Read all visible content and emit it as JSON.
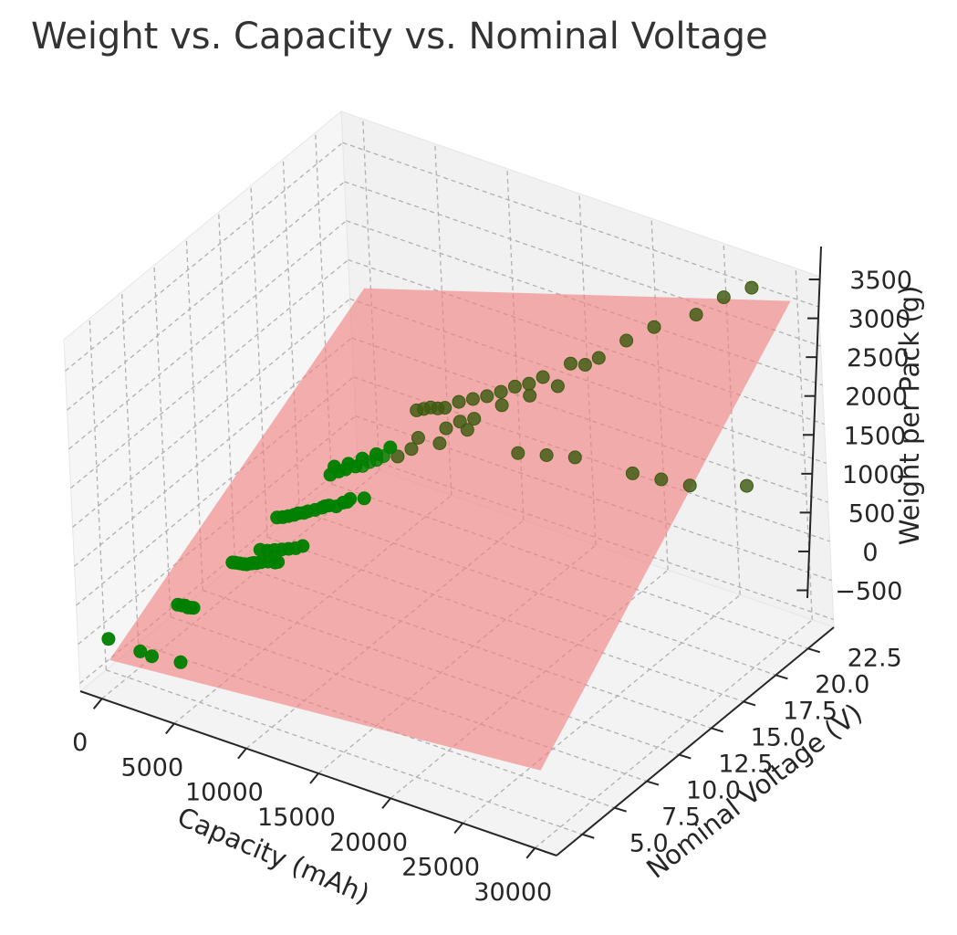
{
  "chart_data": {
    "type": "scatter",
    "title": "Weight vs. Capacity vs. Nominal Voltage",
    "xlabel": "Capacity (mAh)",
    "ylabel": "Nominal Voltage (V)",
    "zlabel": "Weight per Pack (g)",
    "xlim": [
      -1500,
      31500
    ],
    "ylim": [
      3.0,
      24.5
    ],
    "zlim": [
      -600,
      3900
    ],
    "x_ticks": [
      "0",
      "5000",
      "10000",
      "15000",
      "20000",
      "25000",
      "30000"
    ],
    "y_ticks": [
      "5.0",
      "7.5",
      "10.0",
      "12.5",
      "15.0",
      "17.5",
      "20.0",
      "22.5"
    ],
    "z_ticks": [
      "−500",
      "0",
      "500",
      "1000",
      "1500",
      "2000",
      "2500",
      "3000",
      "3500"
    ],
    "grid": true,
    "colors": {
      "points": "#008000",
      "points_dark": "#3d5a10",
      "plane": "#f08080",
      "pane_back": "#f1f1f1",
      "pane_side": "#f6f6f6",
      "pane_floor": "#f3f3f3",
      "grid": "#b0b0b0"
    },
    "series": [
      {
        "name": "",
        "kind": "scatter",
        "points": [
          [
            0,
            3.7,
            70
          ],
          [
            2200,
            3.7,
            50
          ],
          [
            2200,
            7.4,
            110
          ],
          [
            3000,
            3.7,
            40
          ],
          [
            5000,
            3.7,
            90
          ],
          [
            1500,
            7.4,
            100
          ],
          [
            1800,
            7.4,
            110
          ],
          [
            2000,
            7.4,
            120
          ],
          [
            2400,
            7.4,
            120
          ],
          [
            2600,
            7.4,
            130
          ],
          [
            2000,
            11.1,
            170
          ],
          [
            2200,
            11.1,
            180
          ],
          [
            2500,
            11.1,
            190
          ],
          [
            2800,
            11.1,
            200
          ],
          [
            3000,
            11.1,
            210
          ],
          [
            3300,
            11.1,
            240
          ],
          [
            3500,
            11.1,
            260
          ],
          [
            3700,
            11.1,
            270
          ],
          [
            4000,
            11.1,
            300
          ],
          [
            4500,
            11.1,
            340
          ],
          [
            5000,
            11.1,
            360
          ],
          [
            5200,
            11.1,
            380
          ],
          [
            4000,
            11.1,
            460
          ],
          [
            4500,
            11.1,
            480
          ],
          [
            5000,
            11.1,
            520
          ],
          [
            5500,
            11.1,
            560
          ],
          [
            6000,
            11.1,
            600
          ],
          [
            6500,
            11.1,
            640
          ],
          [
            7000,
            11.1,
            700
          ],
          [
            1800,
            14.8,
            230
          ],
          [
            2200,
            14.8,
            260
          ],
          [
            2600,
            14.8,
            300
          ],
          [
            3000,
            14.8,
            340
          ],
          [
            3300,
            14.8,
            380
          ],
          [
            3700,
            14.8,
            410
          ],
          [
            4000,
            14.8,
            450
          ],
          [
            4500,
            14.8,
            500
          ],
          [
            5000,
            14.8,
            560
          ],
          [
            5200,
            14.8,
            590
          ],
          [
            5500,
            14.8,
            620
          ],
          [
            6000,
            14.8,
            640
          ],
          [
            6500,
            14.8,
            720
          ],
          [
            6800,
            14.8,
            750
          ],
          [
            7000,
            14.8,
            800
          ],
          [
            8000,
            14.8,
            870
          ],
          [
            6000,
            14.8,
            1150
          ],
          [
            7000,
            14.8,
            1250
          ],
          [
            8000,
            14.8,
            1380
          ],
          [
            9000,
            14.8,
            1500
          ],
          [
            10000,
            14.8,
            1650
          ],
          [
            12000,
            14.8,
            1900
          ],
          [
            14000,
            14.8,
            2150
          ],
          [
            15000,
            14.8,
            2300
          ],
          [
            16000,
            14.8,
            2400
          ],
          [
            18000,
            14.8,
            2700
          ],
          [
            20000,
            14.8,
            2950
          ],
          [
            22000,
            14.8,
            3200
          ],
          [
            24000,
            14.8,
            3600
          ],
          [
            2200,
            18.5,
            300
          ],
          [
            2800,
            18.5,
            380
          ],
          [
            3300,
            18.5,
            440
          ],
          [
            4000,
            18.5,
            520
          ],
          [
            4500,
            18.5,
            560
          ],
          [
            5000,
            18.5,
            640
          ],
          [
            5500,
            18.5,
            700
          ],
          [
            6000,
            18.5,
            780
          ],
          [
            7000,
            18.5,
            840
          ],
          [
            8000,
            18.5,
            1000
          ],
          [
            10000,
            18.5,
            1200
          ],
          [
            12000,
            18.5,
            1500
          ],
          [
            5000,
            22.2,
            800
          ],
          [
            5500,
            22.2,
            850
          ],
          [
            6000,
            22.2,
            900
          ],
          [
            6500,
            22.2,
            920
          ],
          [
            7000,
            22.2,
            960
          ],
          [
            8000,
            22.2,
            1100
          ],
          [
            9000,
            22.2,
            1200
          ],
          [
            10000,
            22.2,
            1300
          ],
          [
            11000,
            22.2,
            1420
          ],
          [
            12000,
            22.2,
            1550
          ],
          [
            13000,
            22.2,
            1650
          ],
          [
            14000,
            22.2,
            1800
          ],
          [
            16000,
            22.2,
            2100
          ],
          [
            18000,
            22.2,
            2300
          ],
          [
            20000,
            22.2,
            2650
          ],
          [
            22000,
            22.2,
            2950
          ],
          [
            25000,
            22.2,
            3300
          ],
          [
            27000,
            22.2,
            3650
          ],
          [
            29000,
            22.2,
            3900
          ],
          [
            12000,
            22.2,
            700
          ],
          [
            14000,
            22.2,
            800
          ],
          [
            16000,
            22.2,
            900
          ],
          [
            20000,
            22.2,
            950
          ],
          [
            22000,
            22.2,
            1000
          ],
          [
            24000,
            22.2,
            1050
          ],
          [
            28000,
            22.2,
            1300
          ]
        ]
      },
      {
        "name": "",
        "kind": "surface",
        "corners": [
          [
            0,
            3.7,
            -200
          ],
          [
            30000,
            3.7,
            300
          ],
          [
            30000,
            24.0,
            3550
          ],
          [
            0,
            24.0,
            1800
          ]
        ]
      }
    ]
  }
}
